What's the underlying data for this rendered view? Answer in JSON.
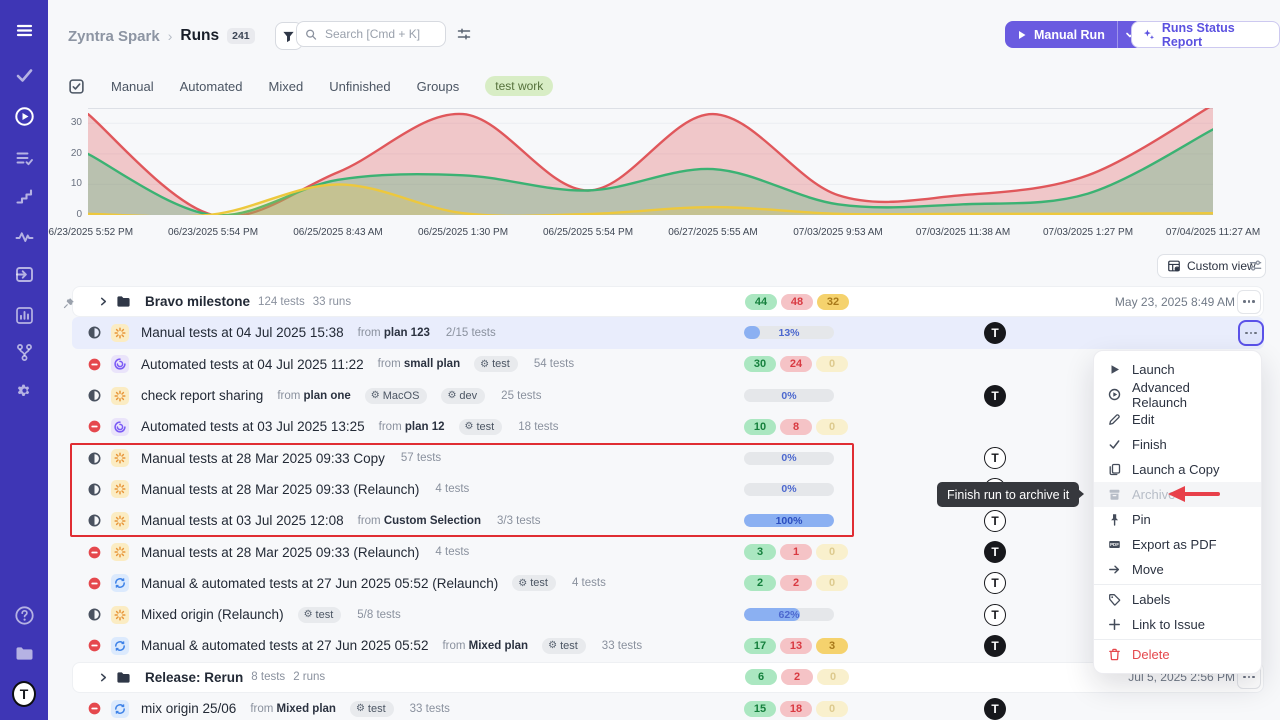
{
  "header": {
    "project": "Zyntra Spark",
    "separator": "›",
    "page": "Runs",
    "count": "241",
    "search_placeholder": "Search [Cmd + K]",
    "manual_run": "Manual Run",
    "runs_status_report": "Runs Status Report"
  },
  "tabs": {
    "items": [
      "Manual",
      "Automated",
      "Mixed",
      "Unfinished",
      "Groups"
    ],
    "filter_pill": "test work"
  },
  "toolbar": {
    "custom_view": "Custom view"
  },
  "strings": {
    "from": "from",
    "avatar_letter": "T"
  },
  "chart_data": {
    "type": "area",
    "x_labels": [
      "06/23/2025 5:52 PM",
      "06/23/2025 5:54 PM",
      "06/25/2025 8:43 AM",
      "06/25/2025 1:30 PM",
      "06/25/2025 5:54 PM",
      "06/27/2025 5:55 AM",
      "07/03/2025 9:53 AM",
      "07/03/2025 11:38 AM",
      "07/03/2025 1:27 PM",
      "07/04/2025 11:27 AM"
    ],
    "yticks": [
      0,
      10,
      20,
      30
    ],
    "ylim": [
      0,
      35
    ],
    "grid": true,
    "legend": false,
    "series": [
      {
        "name": "red",
        "color": "#e0575b",
        "fill": "rgba(224,87,91,0.30)",
        "values": [
          33,
          0,
          14,
          33,
          8,
          33,
          6.5,
          6.5,
          13,
          36
        ]
      },
      {
        "name": "green",
        "color": "#3bb273",
        "fill": "rgba(59,178,115,0.30)",
        "values": [
          20,
          0,
          11.5,
          13,
          8,
          15,
          3.5,
          3.5,
          7,
          28
        ]
      },
      {
        "name": "yellow",
        "color": "#edc83d",
        "fill": "rgba(237,200,61,0.25)",
        "values": [
          0.4,
          0.2,
          10,
          0.6,
          0.3,
          2.6,
          0.4,
          0.4,
          0.4,
          0.6
        ]
      }
    ]
  },
  "rows": [
    {
      "kind": "group",
      "pinned": true,
      "title": "Bravo milestone",
      "meta": [
        "124 tests",
        "33 runs"
      ],
      "badges": [
        "44",
        "48",
        "32"
      ],
      "yellow_zero": false,
      "date": "May 23, 2025 8:49 AM",
      "more": "boxed"
    },
    {
      "kind": "run",
      "selected": true,
      "status": "in-progress",
      "run_type": "manual",
      "title": "Manual tests at 04 Jul 2025 15:38",
      "from": "plan 123",
      "tests": "2/15 tests",
      "progress": {
        "pct": 13,
        "label": "13%"
      },
      "avatar": "filled",
      "more": "focused"
    },
    {
      "kind": "run",
      "status": "stopped",
      "run_type": "automated",
      "title": "Automated tests at 04 Jul 2025 11:22",
      "from": "small plan",
      "chips": [
        "test"
      ],
      "tests": "54 tests",
      "badges": [
        "30",
        "24",
        "0"
      ],
      "yellow_zero": true
    },
    {
      "kind": "run",
      "status": "in-progress",
      "run_type": "manual",
      "title": "check report sharing",
      "from": "plan one",
      "chips": [
        "MacOS",
        "dev"
      ],
      "tests": "25 tests",
      "progress": {
        "pct": 0,
        "label": "0%"
      },
      "avatar": "filled"
    },
    {
      "kind": "run",
      "status": "stopped",
      "run_type": "automated",
      "title": "Automated tests at 03 Jul 2025 13:25",
      "from": "plan 12",
      "chips": [
        "test"
      ],
      "tests": "18 tests",
      "badges": [
        "10",
        "8",
        "0"
      ],
      "yellow_zero": true
    },
    {
      "kind": "run",
      "status": "in-progress",
      "run_type": "manual",
      "title": "Manual tests at 28 Mar 2025 09:33 Copy",
      "tests": "57 tests",
      "progress": {
        "pct": 0,
        "label": "0%"
      },
      "avatar": "outline"
    },
    {
      "kind": "run",
      "status": "in-progress",
      "run_type": "manual",
      "title": "Manual tests at 28 Mar 2025 09:33 (Relaunch)",
      "tests": "4 tests",
      "progress": {
        "pct": 0,
        "label": "0%"
      },
      "avatar": "outline"
    },
    {
      "kind": "run",
      "status": "in-progress",
      "run_type": "manual",
      "title": "Manual tests at 03 Jul 2025 12:08",
      "from": "Custom Selection",
      "tests": "3/3 tests",
      "progress": {
        "pct": 100,
        "label": "100%"
      },
      "avatar": "outline"
    },
    {
      "kind": "run",
      "status": "stopped",
      "run_type": "manual",
      "title": "Manual tests at 28 Mar 2025 09:33 (Relaunch)",
      "tests": "4 tests",
      "badges": [
        "3",
        "1",
        "0"
      ],
      "yellow_zero": true,
      "avatar": "filled"
    },
    {
      "kind": "run",
      "status": "stopped",
      "run_type": "mixed",
      "title": "Manual & automated tests at 27 Jun 2025 05:52 (Relaunch)",
      "chips": [
        "test"
      ],
      "tests": "4 tests",
      "badges": [
        "2",
        "2",
        "0"
      ],
      "yellow_zero": true,
      "avatar": "outline"
    },
    {
      "kind": "run",
      "status": "in-progress",
      "run_type": "manual",
      "title": "Mixed origin (Relaunch)",
      "chips": [
        "test"
      ],
      "tests": "5/8 tests",
      "progress": {
        "pct": 62,
        "label": "62%"
      },
      "avatar": "outline"
    },
    {
      "kind": "run",
      "status": "stopped",
      "run_type": "mixed",
      "title": "Manual & automated tests at 27 Jun 2025 05:52",
      "from": "Mixed plan",
      "chips": [
        "test"
      ],
      "tests": "33 tests",
      "badges": [
        "17",
        "13",
        "3"
      ],
      "yellow_zero": false,
      "avatar": "filled"
    },
    {
      "kind": "group",
      "title": "Release: Rerun",
      "meta": [
        "8 tests",
        "2 runs"
      ],
      "badges": [
        "6",
        "2",
        "0"
      ],
      "yellow_zero": true,
      "date": "Jul 5, 2025 2:56 PM",
      "more": "boxed"
    },
    {
      "kind": "run",
      "status": "stopped",
      "run_type": "mixed",
      "title": "mix origin 25/06",
      "from": "Mixed plan",
      "chips": [
        "test"
      ],
      "tests": "33 tests",
      "badges": [
        "15",
        "18",
        "0"
      ],
      "yellow_zero": true,
      "avatar": "filled"
    }
  ],
  "context_menu": {
    "items": [
      {
        "label": "Launch",
        "icon": "play"
      },
      {
        "label": "Advanced Relaunch",
        "icon": "relaunch"
      },
      {
        "label": "Edit",
        "icon": "edit"
      },
      {
        "label": "Finish",
        "icon": "check"
      },
      {
        "label": "Launch a Copy",
        "icon": "copy"
      },
      {
        "label": "Archive",
        "icon": "archive",
        "disabled": true
      },
      {
        "label": "Pin",
        "icon": "pin"
      },
      {
        "label": "Export as PDF",
        "icon": "pdf"
      },
      {
        "label": "Move",
        "icon": "move"
      },
      {
        "divider": true
      },
      {
        "label": "Labels",
        "icon": "tag"
      },
      {
        "label": "Link to Issue",
        "icon": "plus"
      },
      {
        "divider": true
      },
      {
        "label": "Delete",
        "icon": "trash",
        "danger": true
      }
    ]
  },
  "tooltip": {
    "text": "Finish run to archive it"
  },
  "colors": {
    "sidebar": "#3e36b5",
    "accent": "#6a5be0",
    "selected_row": "#e9edfc",
    "annotation_red": "#e02d33",
    "chart_red": "#e0575b",
    "chart_green": "#3bb273",
    "chart_yellow": "#edc83d"
  }
}
